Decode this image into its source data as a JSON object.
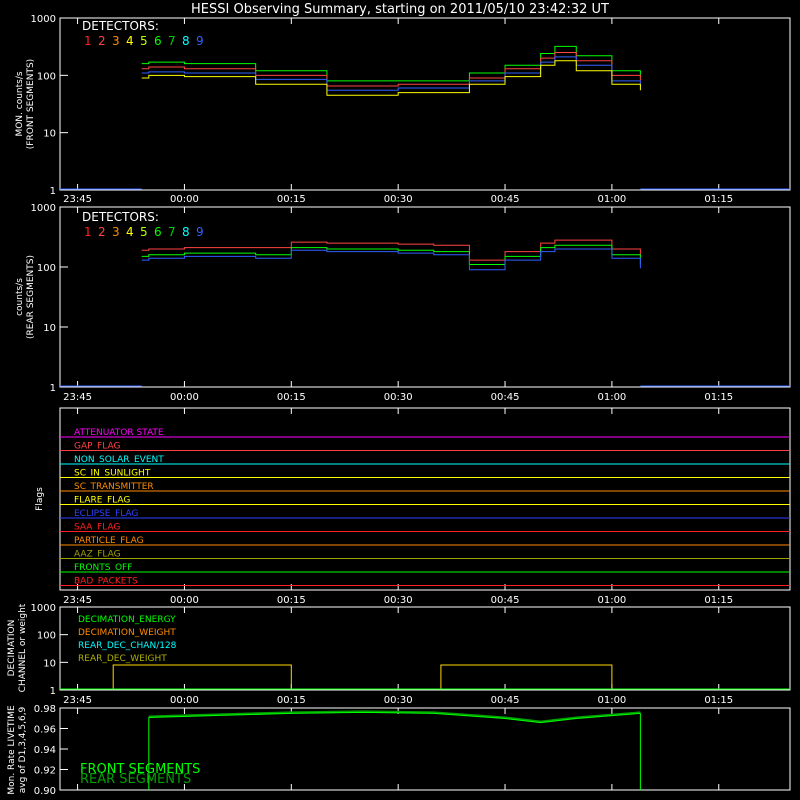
{
  "title": "HESSI Observing Summary, starting on 2011/05/10 23:42:32 UT",
  "time_labels": [
    "23:45",
    "00:00",
    "00:15",
    "00:30",
    "00:45",
    "01:00",
    "01:15"
  ],
  "detectors": {
    "label": "DETECTORS:",
    "numbers": [
      "1",
      "2",
      "3",
      "4",
      "5",
      "6",
      "7",
      "8",
      "9"
    ],
    "colors": [
      "#ff2020",
      "#ff4444",
      "#ff8c00",
      "#ffff00",
      "#b8ff00",
      "#00ff00",
      "#00d000",
      "#00ffff",
      "#3060ff"
    ]
  },
  "chart_data": [
    {
      "type": "line",
      "panel": "front",
      "ylabel_lines": [
        "MON. counts/s",
        "(FRONT SEGMENTS)"
      ],
      "y_scale": "log",
      "ylim": [
        1,
        1000
      ],
      "y_ticks": [
        "1",
        "10",
        "100",
        "1000"
      ],
      "x_range": [
        "23:42:32",
        "01:25:00"
      ],
      "x": [
        "23:54",
        "23:55",
        "00:00",
        "00:10",
        "00:20",
        "00:30",
        "00:40",
        "00:45",
        "00:50",
        "00:52",
        "00:55",
        "01:00",
        "01:04"
      ],
      "series": [
        {
          "color": "#00ff00",
          "values": [
            160,
            170,
            160,
            120,
            80,
            80,
            110,
            150,
            240,
            320,
            220,
            120,
            90
          ]
        },
        {
          "color": "#ff4444",
          "values": [
            130,
            140,
            130,
            100,
            65,
            70,
            90,
            130,
            200,
            250,
            180,
            100,
            80
          ]
        },
        {
          "color": "#3060ff",
          "values": [
            110,
            115,
            110,
            85,
            55,
            60,
            80,
            110,
            170,
            210,
            150,
            80,
            65
          ]
        },
        {
          "color": "#ffff00",
          "values": [
            90,
            100,
            95,
            70,
            45,
            50,
            70,
            95,
            150,
            180,
            120,
            70,
            55
          ]
        }
      ]
    },
    {
      "type": "line",
      "panel": "rear",
      "ylabel_lines": [
        "counts/s",
        "(REAR SEGMENTS)"
      ],
      "y_scale": "log",
      "ylim": [
        1,
        1000
      ],
      "y_ticks": [
        "1",
        "10",
        "100",
        "1000"
      ],
      "x_range": [
        "23:42:32",
        "01:25:00"
      ],
      "x": [
        "23:54",
        "23:55",
        "00:00",
        "00:10",
        "00:15",
        "00:20",
        "00:30",
        "00:35",
        "00:40",
        "00:45",
        "00:50",
        "00:52",
        "01:00",
        "01:04"
      ],
      "series": [
        {
          "color": "#ff4444",
          "values": [
            190,
            200,
            210,
            210,
            260,
            250,
            240,
            230,
            130,
            180,
            250,
            280,
            200,
            150
          ]
        },
        {
          "color": "#00ff00",
          "values": [
            150,
            160,
            170,
            160,
            210,
            200,
            190,
            180,
            110,
            150,
            210,
            230,
            160,
            110
          ]
        },
        {
          "color": "#3060ff",
          "values": [
            130,
            140,
            150,
            140,
            190,
            180,
            170,
            160,
            90,
            130,
            180,
            200,
            140,
            95
          ]
        }
      ]
    },
    {
      "type": "step",
      "panel": "flags",
      "ylabel": "Flags",
      "x_range": [
        "23:42:32",
        "01:25:00"
      ],
      "flags": [
        {
          "name": "ATTENUATOR STATE",
          "color": "#ff00ff"
        },
        {
          "name": "GAP_FLAG",
          "color": "#ff4040"
        },
        {
          "name": "NON_SOLAR_EVENT",
          "color": "#00ffff"
        },
        {
          "name": "SC_IN_SUNLIGHT",
          "color": "#ffff00"
        },
        {
          "name": "SC_TRANSMITTER",
          "color": "#ff8c00"
        },
        {
          "name": "FLARE_FLAG",
          "color": "#ffff00"
        },
        {
          "name": "ECLIPSE_FLAG",
          "color": "#3040ff"
        },
        {
          "name": "SAA_FLAG",
          "color": "#ff2020"
        },
        {
          "name": "PARTICLE_FLAG",
          "color": "#ff8c00"
        },
        {
          "name": "AAZ_FLAG",
          "color": "#a0a000"
        },
        {
          "name": "FRONTS_OFF",
          "color": "#00ff00"
        },
        {
          "name": "BAD_PACKETS",
          "color": "#ff2020"
        }
      ]
    },
    {
      "type": "step",
      "panel": "decimation",
      "ylabel_lines": [
        "DECIMATION",
        "CHANNEL or weight"
      ],
      "y_scale": "log",
      "ylim": [
        1,
        1000
      ],
      "y_ticks": [
        "1",
        "10",
        "100",
        "1000"
      ],
      "x_range": [
        "23:42:32",
        "01:25:00"
      ],
      "legend": [
        {
          "name": "DECIMATION_ENERGY",
          "color": "#00ff00"
        },
        {
          "name": "DECIMATION_WEIGHT",
          "color": "#ff8c00"
        },
        {
          "name": "REAR_DEC_CHAN/128",
          "color": "#00ffff"
        },
        {
          "name": "REAR_DEC_WEIGHT",
          "color": "#b0b000"
        }
      ],
      "segments": [
        {
          "start": "23:50",
          "end": "00:15",
          "value": 8
        },
        {
          "start": "00:36",
          "end": "01:00",
          "value": 8
        }
      ]
    },
    {
      "type": "line",
      "panel": "livetime",
      "ylabel_lines": [
        "Mon. Rate LIVETIME",
        "avg of D1,3,4,5,6,9"
      ],
      "ylim": [
        0.9,
        0.98
      ],
      "y_ticks": [
        "0.90",
        "0.92",
        "0.94",
        "0.96",
        "0.98"
      ],
      "x_range": [
        "23:42:32",
        "01:25:00"
      ],
      "x": [
        "23:55",
        "00:05",
        "00:15",
        "00:25",
        "00:35",
        "00:45",
        "00:50",
        "00:55",
        "01:04"
      ],
      "series": [
        {
          "name": "FRONT SEGMENTS",
          "color": "#00ff00",
          "values": [
            0.971,
            0.973,
            0.975,
            0.976,
            0.975,
            0.97,
            0.966,
            0.97,
            0.975
          ]
        },
        {
          "name": "REAR SEGMENTS",
          "color": "#00a000",
          "values": [
            0.972,
            0.974,
            0.976,
            0.977,
            0.976,
            0.971,
            0.967,
            0.971,
            0.976
          ]
        }
      ]
    }
  ]
}
